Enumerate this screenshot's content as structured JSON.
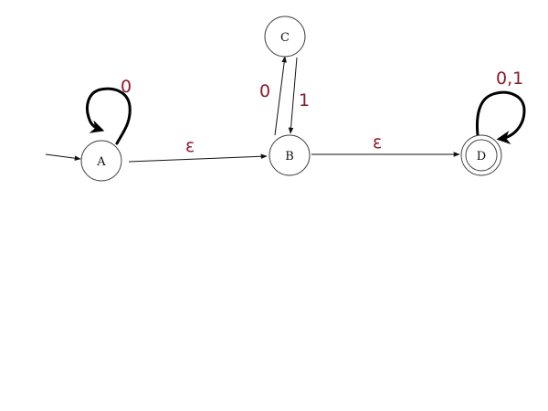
{
  "diagram": {
    "states": {
      "A": {
        "label": "A"
      },
      "B": {
        "label": "B"
      },
      "C": {
        "label": "C"
      },
      "D": {
        "label": "D",
        "accepting": true
      }
    },
    "start_state": "A",
    "transitions": [
      {
        "from": "A",
        "to": "A",
        "label": "0"
      },
      {
        "from": "A",
        "to": "B",
        "label": "ε"
      },
      {
        "from": "B",
        "to": "C",
        "label": "0"
      },
      {
        "from": "C",
        "to": "B",
        "label": "1"
      },
      {
        "from": "B",
        "to": "D",
        "label": "ε"
      },
      {
        "from": "D",
        "to": "D",
        "label": "0,1"
      }
    ],
    "colors": {
      "line": "#111111",
      "handwriting": "#8b1a2b",
      "loop_stroke": "#000000"
    }
  }
}
